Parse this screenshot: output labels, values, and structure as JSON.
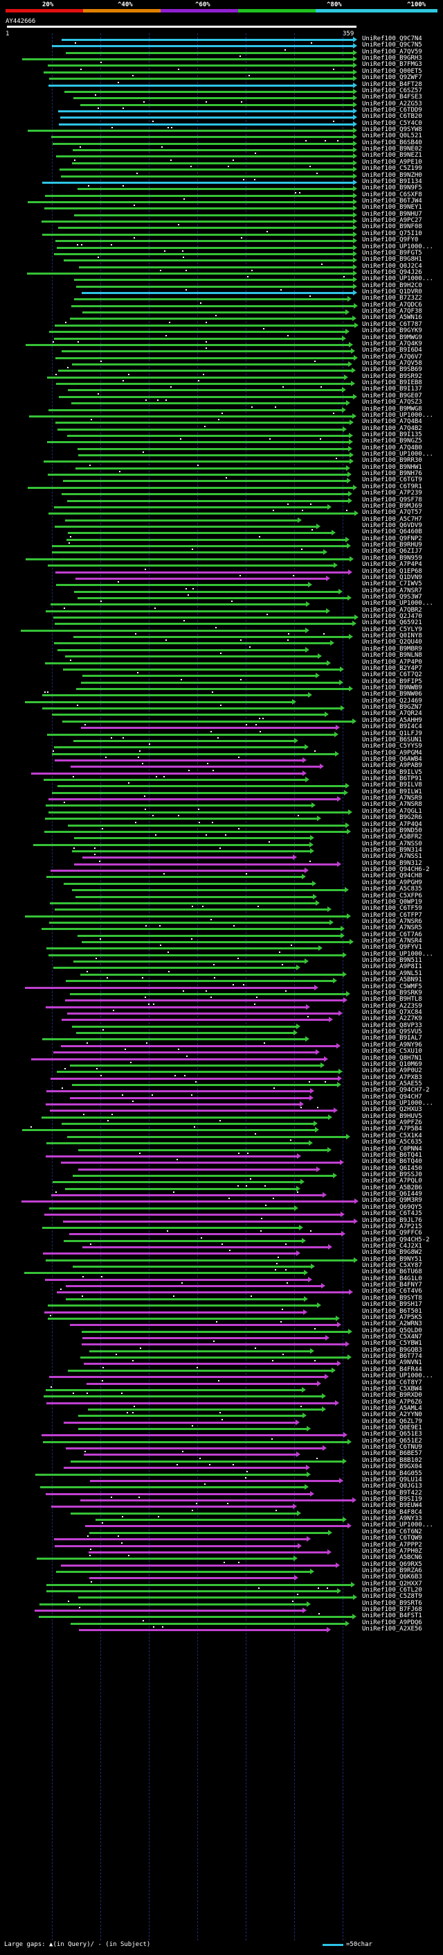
{
  "scale": {
    "labels": [
      "20%",
      "^40%",
      "^60%",
      "^80%",
      "^100%"
    ],
    "colors": [
      "#e01010",
      "#e08000",
      "#9020d0",
      "#20c020",
      "#30c8e0"
    ]
  },
  "query": {
    "id": "AY442666",
    "start": "1",
    "end": "359"
  },
  "colors": {
    "cyan": "#2ec4e6",
    "green": "#36c236",
    "magenta": "#c040d0"
  },
  "hits": [
    "UniRef100_Q9C7N4",
    "UniRef100_Q9C7N5",
    "UniRef100_A7QV59",
    "UniRef100_B9GRH3",
    "UniRef100_B7FMG3",
    "UniRef100_Q00ET5",
    "UniRef100_Q9ZWF7",
    "UniRef100_B4FT28",
    "UniRef100_C6SZ57",
    "UniRef100_B4FSE3",
    "UniRef100_A2ZG53",
    "UniRef100_C6TDD9",
    "UniRef100_C6TB20",
    "UniRef100_C5Y4C0",
    "UniRef100_Q9SYW8",
    "UniRef100_Q0L521",
    "UniRef100_B6SB40",
    "UniRef100_B9NE02",
    "UniRef100_B9NEZ1",
    "UniRef100_A9PE10",
    "UniRef100_C5Z199",
    "UniRef100_B9NZH0",
    "UniRef100_B9I134",
    "UniRef100_B9N9F5",
    "UniRef100_C6SXF8",
    "UniRef100_B6TJW4",
    "UniRef100_B9NEY1",
    "UniRef100_B9NHU7",
    "UniRef100_A9PC27",
    "UniRef100_B9NF08",
    "UniRef100_Q75I10",
    "UniRef100_Q9FY0",
    "UniRef100_UP1000...",
    "UniRef100_B9FGT5",
    "UniRef100_B9G8H1",
    "UniRef100_Q0J2C4",
    "UniRef100_Q94J26",
    "UniRef100_UP1000...",
    "UniRef100_B9H2C0",
    "UniRef100_Q1DVR0",
    "UniRef100_B7Z3Z2",
    "UniRef100_A7QDC6",
    "UniRef100_A7QF38",
    "UniRef100_A5WN16",
    "UniRef100_C6T787",
    "UniRef100_B9GYK9",
    "UniRef100_B9MWG9",
    "UniRef100_A7Q4K9",
    "UniRef100_B9I6D4",
    "UniRef100_A7Q6V7",
    "UniRef100_A7QV58",
    "UniRef100_B9SB69",
    "UniRef100_B9SR92",
    "UniRef100_B9IEB8",
    "UniRef100_B9I137",
    "UniRef100_B9GE07",
    "UniRef100_A7QSZ3",
    "UniRef100_B9MWG8",
    "UniRef100_UP1000...",
    "UniRef100_A7Q4B4",
    "UniRef100_A7Q4B2",
    "UniRef100_B9I135",
    "UniRef100_B9NGZ5",
    "UniRef100_A7Q4B0",
    "UniRef100_UP1000...",
    "UniRef100_B9RR30",
    "UniRef100_B9NHW1",
    "UniRef100_B9NH76",
    "UniRef100_C6TGT9",
    "UniRef100_C6T9R1",
    "UniRef100_A7P239",
    "UniRef100_Q9SF78",
    "UniRef100_B9MJ69",
    "UniRef100_A7QT57",
    "UniRef100_A5C7H7",
    "UniRef100_Q6VDV9",
    "UniRef100_Q6460B",
    "UniRef100_Q9FNP2",
    "UniRef100_B9RHU9",
    "UniRef100_Q6ZIJ7",
    "UniRef100_B9N959",
    "UniRef100_A7P4P4",
    "UniRef100_Q1EP68",
    "UniRef100_Q1DVN9",
    "UniRef100_C7IWV5",
    "UniRef100_A7NSR7",
    "UniRef100_Q9S3W7",
    "UniRef100_UP1000...",
    "UniRef100_A7QBR2",
    "UniRef100_Q2J470",
    "UniRef100_Q65921",
    "UniRef100_C5YLY9",
    "UniRef100_Q0INY8",
    "UniRef100_Q2QU40",
    "UniRef100_B9MBR9",
    "UniRef100_B9NLN8",
    "UniRef100_A7P4P0",
    "UniRef100_B2Y4P7",
    "UniRef100_C6T7Q2",
    "UniRef100_B9FIP5",
    "UniRef100_B9NWB9",
    "UniRef100_B9NW06",
    "UniRef100_Q2J469",
    "UniRef100_B9GZN7",
    "UniRef100_A7QR24",
    "UniRef100_A5AHH9",
    "UniRef100_B9I4C4",
    "UniRef100_Q1LFJ9",
    "UniRef100_B6SUN1",
    "UniRef100_C5YYS9",
    "UniRef100_A9PGM4",
    "UniRef100_Q6AWB4",
    "UniRef100_A9PAB9",
    "UniRef100_B9ILV5",
    "UniRef100_B6TP91",
    "UniRef100_B9ILV8",
    "UniRef100_B9ILW1",
    "UniRef100_A7NSR9",
    "UniRef100_A7NSR8",
    "UniRef100_A7QGL1",
    "UniRef100_B9G2R6",
    "UniRef100_A7P4Q4",
    "UniRef100_B9ND50",
    "UniRef100_A5BFR2",
    "UniRef100_A7NSS0",
    "UniRef100_B9N314",
    "UniRef100_A7NSS1",
    "UniRef100_B9N312",
    "UniRef100_Q94CH6-2",
    "UniRef100_Q94CH8",
    "UniRef100_A9PGH9",
    "UniRef100_A5C835",
    "UniRef100_C5XFP6",
    "UniRef100_Q0WP19",
    "UniRef100_C6TF59",
    "UniRef100_C6TFP7",
    "UniRef100_A7NSR6",
    "UniRef100_A7NSR5",
    "UniRef100_C6T7A6",
    "UniRef100_A7NSR4",
    "UniRef100_Q9FYV1",
    "UniRef100_UP1000...",
    "UniRef100_B9N511",
    "UniRef100_A9P8I1",
    "UniRef100_A9NL51",
    "UniRef100_A5BN91",
    "UniRef100_C5WMF5",
    "UniRef100_B9SRK9",
    "UniRef100_B9HTL8",
    "UniRef100_A2Z3S9",
    "UniRef100_Q7XC84",
    "UniRef100_A2Z7K9",
    "UniRef100_Q8VP33",
    "UniRef100_Q9SVU5",
    "UniRef100_B9IAL7",
    "UniRef100_A9NY96",
    "UniRef100_C5XU10",
    "UniRef100_Q8H7N1",
    "UniRef100_Q10M69",
    "UniRef100_A9P0U2",
    "UniRef100_A7PXB3",
    "UniRef100_A5AE55",
    "UniRef100_Q94CH7-2",
    "UniRef100_Q94CH7",
    "UniRef100_UP1000...",
    "UniRef100_Q2HXU3",
    "UniRef100_B9HUV5",
    "UniRef100_A9PFZ6",
    "UniRef100_A7P5B4",
    "UniRef100_C5X1K4",
    "UniRef100_A5C635",
    "UniRef100_C0PNN4",
    "UniRef100_B6TQ41",
    "UniRef100_B6TQ40",
    "UniRef100_Q6I450",
    "UniRef100_B9SSJ0",
    "UniRef100_A7PQL0",
    "UniRef100_A5B2B6",
    "UniRef100_Q6I449",
    "UniRef100_Q9M3R9",
    "UniRef100_Q69QY5",
    "UniRef100_C6T4J5",
    "UniRef100_B9JL76",
    "UniRef100_A7P215",
    "UniRef100_Q9FFC6",
    "UniRef100_Q94CH5-2",
    "UniRef100_C4J2X1",
    "UniRef100_B9G8W2",
    "UniRef100_B9NY51",
    "UniRef100_C5XY87",
    "UniRef100_B6TU68",
    "UniRef100_B4G1L0",
    "UniRef100_B4FNY7",
    "UniRef100_C6T4V6",
    "UniRef100_B9SYT8",
    "UniRef100_B9SH17",
    "UniRef100_B6T501",
    "UniRef100_A7P5K5",
    "UniRef100_A2WRN3",
    "UniRef100_Q5QLD0",
    "UniRef100_C5X4N7",
    "UniRef100_C5YBW1",
    "UniRef100_B9GQB3",
    "UniRef100_B6T774",
    "UniRef100_A9NVN1",
    "UniRef100_B4FR44",
    "UniRef100_UP1000...",
    "UniRef100_C6T8Y7",
    "UniRef100_C5XBW4",
    "UniRef100_B9RXD0",
    "UniRef100_A7P6Z6",
    "UniRef100_A5AML4",
    "UniRef100_A2YYN0",
    "UniRef100_Q6ZL79",
    "UniRef100_Q0E9E1",
    "UniRef100_Q651E3",
    "UniRef100_Q651E2",
    "UniRef100_C6TNU9",
    "UniRef100_B6BE57",
    "UniRef100_B8B102",
    "UniRef100_B9GX04",
    "UniRef100_B4G055",
    "UniRef100_Q9LU14",
    "UniRef100_Q0JG13",
    "UniRef100_B9T422",
    "UniRef100_B9SI19",
    "UniRef100_B9EUW4",
    "UniRef100_B4F8C4",
    "UniRef100_A9NY33",
    "UniRef100_UP1000...",
    "UniRef100_C6T6N2",
    "UniRef100_C6TQW9",
    "UniRef100_A7PPP2",
    "UniRef100_A7PH0Z",
    "UniRef100_A5BCN6",
    "UniRef100_Q69RX5",
    "UniRef100_B9RZA6",
    "UniRef100_Q6K6B3",
    "UniRef100_Q2HXX7",
    "UniRef100_C6TL20",
    "UniRef100_C5Z8T9",
    "UniRef100_B9SRT6",
    "UniRef100_B7FJ68",
    "UniRef100_B4FST1",
    "UniRef100_A9PDQ6",
    "UniRef100_A2XE56"
  ],
  "legend": {
    "gaps": "Large gaps: ▲(in Query)/ - (in Subject)",
    "scale": "=50char"
  }
}
